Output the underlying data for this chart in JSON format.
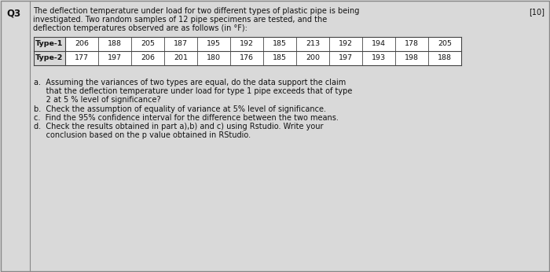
{
  "question_number": "Q3",
  "marks": "[10]",
  "intro_line1": "The deflection temperature under load for two different types of plastic pipe is being",
  "intro_line2": "investigated. Two random samples of 12 pipe specimens are tested, and the",
  "intro_line3": "deflection temperatures observed are as follows (in °F):",
  "type1_label": "Type-1",
  "type2_label": "Type-2",
  "type1_values": [
    206,
    188,
    205,
    187,
    195,
    192,
    185,
    213,
    192,
    194,
    178,
    205
  ],
  "type2_values": [
    177,
    197,
    206,
    201,
    180,
    176,
    185,
    200,
    197,
    193,
    198,
    188
  ],
  "q_a_line1": "a.  Assuming the variances of two types are equal, do the data support the claim",
  "q_a_line2": "     that the deflection temperature under load for type 1 pipe exceeds that of type",
  "q_a_line3": "     2 at 5 % level of significance?",
  "q_b": "b.  Check the assumption of equality of variance at 5% level of significance.",
  "q_c": "c.  Find the 95% confidence interval for the difference between the two means.",
  "q_d_line1": "d.  Check the results obtained in part a),b) and c) using Rstudio. Write your",
  "q_d_line2": "     conclusion based on the p value obtained in RStudio.",
  "bg_color": "#d9d9d9",
  "table_header_bg": "#c8c8c8",
  "table_border_color": "#444444",
  "text_color": "#111111",
  "fs_body": 7.0,
  "fs_q3": 8.5,
  "fs_table": 6.8
}
